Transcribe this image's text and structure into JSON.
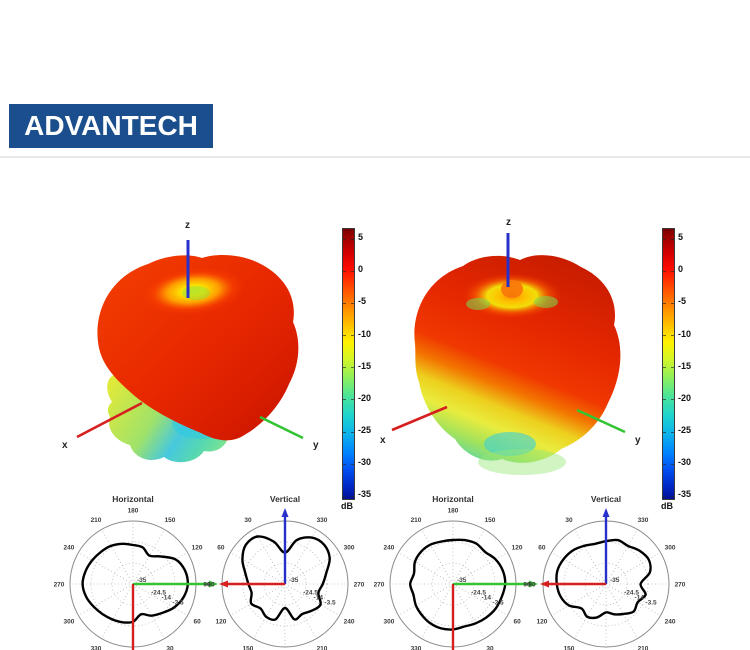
{
  "header": {
    "logo_text": "ADVANTECH",
    "logo_bg_color": "#1a4e8c",
    "divider_color": "#eaeaea"
  },
  "colorbar": {
    "tick_labels": [
      "5",
      "0",
      "-5",
      "-10",
      "-15",
      "-20",
      "-25",
      "-30",
      "-35"
    ],
    "tick_values": [
      5,
      0,
      -5,
      -10,
      -15,
      -20,
      -25,
      -30,
      -35
    ],
    "unit_label": "dB",
    "value_max": 6.5,
    "value_min": -35.5
  },
  "colors": {
    "x_axis": "#d62020",
    "y_axis": "#32c432",
    "z_axis": "#2830cc",
    "pattern_line": "#000000",
    "grid_dotted": "#b8b8b8",
    "outer_ring": "#8a8a8a"
  },
  "chart_data": [
    {
      "type": "surface3d",
      "id": "antenna1-3d-pattern",
      "axes": {
        "x": "x",
        "y": "y",
        "z": "z"
      },
      "value_unit": "dB",
      "value_range": [
        -35,
        6
      ],
      "colorbar_ticks": [
        5,
        0,
        -5,
        -10,
        -15,
        -20,
        -25,
        -30,
        -35
      ],
      "description": "3D antenna gain pattern, toroidal red body (about 0 to 5 dB) with yellow dimple on top along z and green-cyan lower lobe (about -10 to -20 dB)"
    },
    {
      "type": "surface3d",
      "id": "antenna2-3d-pattern",
      "axes": {
        "x": "x",
        "y": "y",
        "z": "z"
      },
      "value_unit": "dB",
      "value_range": [
        -35,
        6
      ],
      "colorbar_ticks": [
        5,
        0,
        -5,
        -10,
        -15,
        -20,
        -25,
        -30,
        -35
      ],
      "description": "3D antenna gain pattern, red body with orange-green dimple on top along z and yellow-green scalloped lower lobe with cyan patch"
    },
    {
      "type": "polar",
      "id": "antenna1-horizontal",
      "title": "Horizontal",
      "orientation": "zero-bottom-cw",
      "radial_unit": "dB",
      "radial_ticks": [
        -35,
        -24.5,
        -14,
        -3.5
      ],
      "visible_angle_labels": [
        180,
        150,
        120,
        90,
        60,
        30,
        330,
        300,
        270,
        240,
        210
      ],
      "samples_deg_db": [
        [
          0,
          -16.1
        ],
        [
          15,
          -19.3
        ],
        [
          30,
          -16.7
        ],
        [
          45,
          -14.5
        ],
        [
          60,
          -11.4
        ],
        [
          75,
          -8.9
        ],
        [
          90,
          -7.6
        ],
        [
          105,
          -8.2
        ],
        [
          120,
          -10.4
        ],
        [
          135,
          -15.5
        ],
        [
          150,
          -18.6
        ],
        [
          165,
          -16.1
        ],
        [
          180,
          -15.5
        ],
        [
          195,
          -14.2
        ],
        [
          210,
          -13
        ],
        [
          225,
          -12.3
        ],
        [
          240,
          -11.4
        ],
        [
          255,
          -10.4
        ],
        [
          270,
          -9.8
        ],
        [
          285,
          -10.7
        ],
        [
          300,
          -12.3
        ],
        [
          315,
          -13.6
        ],
        [
          330,
          -14.5
        ],
        [
          345,
          -15.2
        ]
      ]
    },
    {
      "type": "polar",
      "id": "antenna1-vertical",
      "title": "Vertical",
      "orientation": "zero-top-ccw",
      "radial_unit": "dB",
      "radial_ticks": [
        -35,
        -24.5,
        -14,
        -3.5
      ],
      "visible_angle_labels": [
        30,
        330,
        300,
        270,
        240,
        210,
        150,
        120,
        90,
        60
      ],
      "samples_deg_db": [
        [
          0,
          -19.3
        ],
        [
          15,
          -13
        ],
        [
          30,
          -7.6
        ],
        [
          45,
          -7.3
        ],
        [
          60,
          -10.4
        ],
        [
          75,
          -14.5
        ],
        [
          90,
          -16.7
        ],
        [
          105,
          -17.7
        ],
        [
          120,
          -15.5
        ],
        [
          135,
          -17.7
        ],
        [
          150,
          -16.1
        ],
        [
          165,
          -16.7
        ],
        [
          180,
          -23
        ],
        [
          195,
          -16.7
        ],
        [
          210,
          -17.7
        ],
        [
          225,
          -16.1
        ],
        [
          240,
          -14.5
        ],
        [
          255,
          -17.7
        ],
        [
          270,
          -16.1
        ],
        [
          285,
          -13.6
        ],
        [
          300,
          -9.2
        ],
        [
          315,
          -7.3
        ],
        [
          330,
          -8.2
        ],
        [
          345,
          -12.3
        ]
      ]
    },
    {
      "type": "polar",
      "id": "antenna2-horizontal",
      "title": "Horizontal",
      "orientation": "zero-bottom-cw",
      "radial_unit": "dB",
      "radial_ticks": [
        -35,
        -24.5,
        -14,
        -3.5
      ],
      "visible_angle_labels": [
        180,
        150,
        120,
        90,
        60,
        30,
        330,
        300,
        270,
        240,
        210
      ],
      "samples_deg_db": [
        [
          0,
          -12.3
        ],
        [
          15,
          -13
        ],
        [
          30,
          -12.3
        ],
        [
          45,
          -11.4
        ],
        [
          60,
          -10.4
        ],
        [
          75,
          -9.8
        ],
        [
          90,
          -8.9
        ],
        [
          105,
          -9.2
        ],
        [
          120,
          -10.4
        ],
        [
          135,
          -12.3
        ],
        [
          150,
          -11.7
        ],
        [
          165,
          -12.3
        ],
        [
          180,
          -13
        ],
        [
          195,
          -13
        ],
        [
          210,
          -12.3
        ],
        [
          225,
          -12.3
        ],
        [
          240,
          -13
        ],
        [
          255,
          -14.8
        ],
        [
          270,
          -13.6
        ],
        [
          285,
          -14.5
        ],
        [
          300,
          -13.6
        ],
        [
          315,
          -13
        ],
        [
          330,
          -12.3
        ],
        [
          345,
          -12
        ]
      ]
    },
    {
      "type": "polar",
      "id": "antenna2-vertical",
      "title": "Vertical",
      "orientation": "zero-top-ccw",
      "radial_unit": "dB",
      "radial_ticks": [
        -35,
        -24.5,
        -14,
        -3.5
      ],
      "visible_angle_labels": [
        30,
        330,
        300,
        270,
        240,
        210,
        150,
        120,
        90,
        60
      ],
      "samples_deg_db": [
        [
          0,
          -13.6
        ],
        [
          15,
          -14.2
        ],
        [
          30,
          -13
        ],
        [
          45,
          -11.4
        ],
        [
          60,
          -10.4
        ],
        [
          75,
          -9.8
        ],
        [
          90,
          -10.4
        ],
        [
          105,
          -11.4
        ],
        [
          120,
          -13.6
        ],
        [
          135,
          -17.7
        ],
        [
          150,
          -16.1
        ],
        [
          165,
          -17.7
        ],
        [
          180,
          -20.8
        ],
        [
          195,
          -19.3
        ],
        [
          210,
          -17.7
        ],
        [
          225,
          -15.5
        ],
        [
          240,
          -16.7
        ],
        [
          255,
          -14.5
        ],
        [
          270,
          -17.7
        ],
        [
          285,
          -12.3
        ],
        [
          300,
          -10.4
        ],
        [
          315,
          -11.4
        ],
        [
          330,
          -13
        ],
        [
          345,
          -12.3
        ]
      ]
    }
  ]
}
